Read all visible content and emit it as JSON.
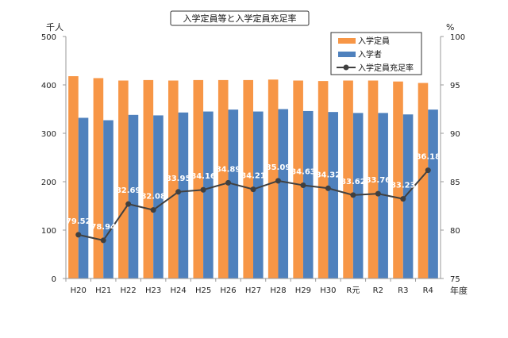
{
  "chart_data": {
    "type": "bar+line",
    "title": "入学定員等と入学定員充足率",
    "left_unit": "千人",
    "right_unit": "%",
    "xlabel": "年度",
    "categories": [
      "H20",
      "H21",
      "H22",
      "H23",
      "H24",
      "H25",
      "H26",
      "H27",
      "H28",
      "H29",
      "H30",
      "R元",
      "R2",
      "R3",
      "R4"
    ],
    "ylim_left": [
      0,
      500
    ],
    "yticks_left": [
      0,
      100,
      200,
      300,
      400,
      500
    ],
    "ylim_right": [
      75,
      100
    ],
    "yticks_right": [
      75,
      80,
      85,
      90,
      95,
      100
    ],
    "legend_position": "top-right",
    "series": [
      {
        "name": "入学定員",
        "type": "bar",
        "axis": "left",
        "color": "#F79646",
        "values": [
          418,
          414,
          409,
          410,
          409,
          410,
          410,
          410,
          411,
          409,
          408,
          409,
          409,
          407,
          404
        ]
      },
      {
        "name": "入学者",
        "type": "bar",
        "axis": "left",
        "color": "#4F81BD",
        "values": [
          332,
          327,
          338,
          337,
          343,
          345,
          349,
          345,
          350,
          346,
          344,
          342,
          342,
          339,
          349
        ]
      },
      {
        "name": "入学定員充足率",
        "type": "line",
        "axis": "right",
        "color": "#404040",
        "values": [
          79.52,
          78.94,
          82.69,
          82.08,
          83.95,
          84.16,
          84.89,
          84.21,
          85.09,
          84.63,
          84.32,
          83.62,
          83.76,
          83.23,
          86.18
        ],
        "labels": [
          "79.52",
          "78.94",
          "82.69",
          "82.08",
          "83.95",
          "84.16",
          "84.89",
          "84.21",
          "85.09",
          "84.63",
          "84.32",
          "83.62",
          "83.76",
          "83.23",
          "86.18"
        ]
      }
    ],
    "grid": false
  }
}
